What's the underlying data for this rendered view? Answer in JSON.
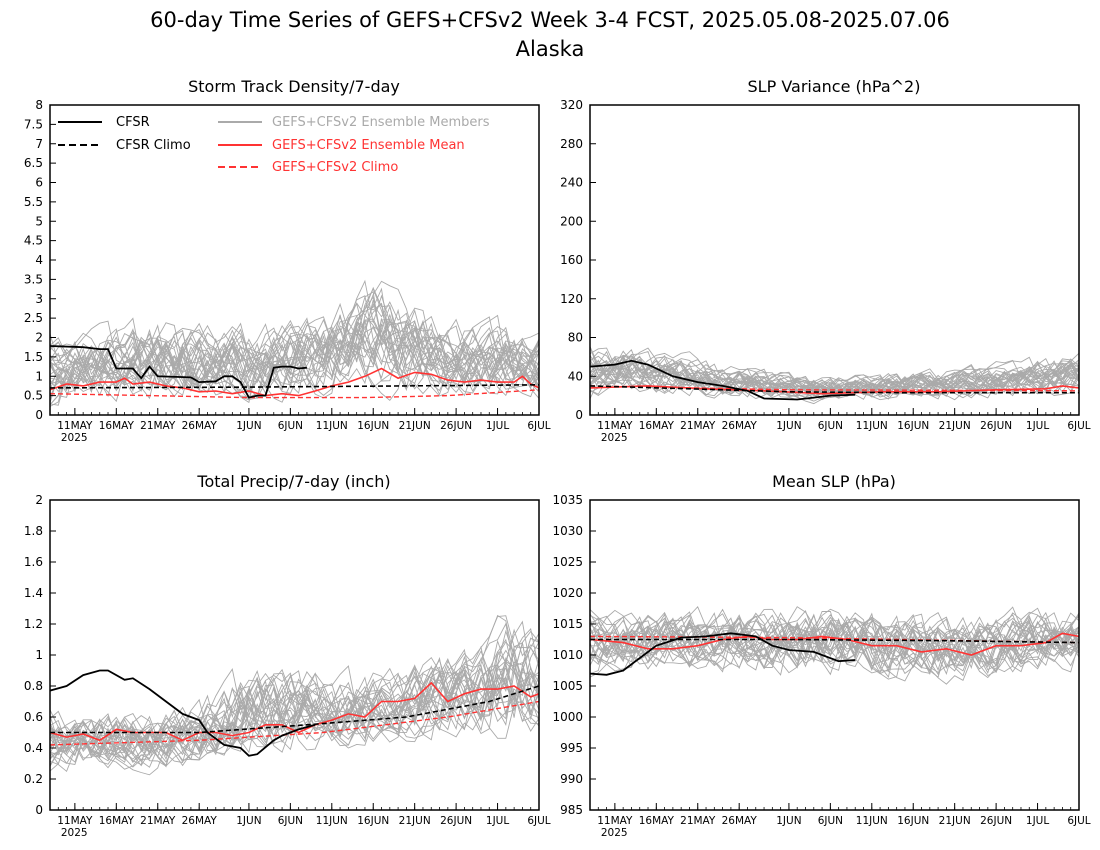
{
  "figure": {
    "title": "60-day Time Series of GEFS+CFSv2 Week 3-4 FCST, 2025.05.08-2025.07.06",
    "subtitle": "Alaska"
  },
  "legend": {
    "cfsr": "CFSR",
    "cfsr_climo": "CFSR Climo",
    "members": "GEFS+CFSv2 Ensemble Members",
    "ens_mean": "GEFS+CFSv2 Ensemble Mean",
    "gefs_climo": "GEFS+CFSv2 Climo"
  },
  "colors": {
    "cfsr": "#000000",
    "members": "#aaaaaa",
    "ens_mean": "#ff3333",
    "gefs_climo": "#ff3333"
  },
  "x_axis": {
    "date_range": [
      "2025-05-08",
      "2025-07-06"
    ],
    "tick_dates": [
      "2025-05-11",
      "2025-05-16",
      "2025-05-21",
      "2025-05-26",
      "2025-06-01",
      "2025-06-06",
      "2025-06-11",
      "2025-06-16",
      "2025-06-21",
      "2025-06-26",
      "2025-07-01",
      "2025-07-06"
    ],
    "tick_labels": [
      "11MAY",
      "16MAY",
      "21MAY",
      "26MAY",
      "1JUN",
      "6JUN",
      "11JUN",
      "16JUN",
      "21JUN",
      "26JUN",
      "1JUL",
      "6JUL"
    ],
    "year_label": "2025"
  },
  "chart_data": [
    {
      "type": "line",
      "title": "Storm Track Density/7-day",
      "ylim": [
        0,
        8
      ],
      "y_ticks": [
        0,
        0.5,
        1,
        1.5,
        2,
        2.5,
        3,
        3.5,
        4,
        4.5,
        5,
        5.5,
        6,
        6.5,
        7,
        7.5,
        8
      ],
      "y_tick_labels": [
        "0",
        "0.5",
        "1",
        "1.5",
        "2",
        "2.5",
        "3",
        "3.5",
        "4",
        "4.5",
        "5",
        "5.5",
        "6",
        "6.5",
        "7",
        "7.5",
        "8"
      ],
      "cfsr": [
        [
          "2025-05-08",
          1.78
        ],
        [
          "2025-05-12",
          1.75
        ],
        [
          "2025-05-14",
          1.7
        ],
        [
          "2025-05-15",
          1.7
        ],
        [
          "2025-05-16",
          1.2
        ],
        [
          "2025-05-18",
          1.2
        ],
        [
          "2025-05-19",
          0.95
        ],
        [
          "2025-05-20",
          1.25
        ],
        [
          "2025-05-21",
          1.0
        ],
        [
          "2025-05-25",
          0.97
        ],
        [
          "2025-05-26",
          0.85
        ],
        [
          "2025-05-28",
          0.87
        ],
        [
          "2025-05-29",
          1.0
        ],
        [
          "2025-05-30",
          1.0
        ],
        [
          "2025-05-31",
          0.85
        ],
        [
          "2025-06-01",
          0.45
        ],
        [
          "2025-06-02",
          0.5
        ],
        [
          "2025-06-03",
          0.5
        ],
        [
          "2025-06-04",
          1.22
        ],
        [
          "2025-06-05",
          1.25
        ],
        [
          "2025-06-06",
          1.25
        ],
        [
          "2025-06-07",
          1.2
        ],
        [
          "2025-06-08",
          1.22
        ]
      ],
      "cfsr_climo": [
        [
          "2025-05-08",
          0.7
        ],
        [
          "2025-06-01",
          0.72
        ],
        [
          "2025-06-20",
          0.75
        ],
        [
          "2025-07-06",
          0.78
        ]
      ],
      "ens_mean": [
        [
          "2025-05-08",
          0.65
        ],
        [
          "2025-05-10",
          0.8
        ],
        [
          "2025-05-12",
          0.75
        ],
        [
          "2025-05-14",
          0.85
        ],
        [
          "2025-05-16",
          0.85
        ],
        [
          "2025-05-17",
          0.95
        ],
        [
          "2025-05-18",
          0.8
        ],
        [
          "2025-05-20",
          0.85
        ],
        [
          "2025-05-22",
          0.75
        ],
        [
          "2025-05-24",
          0.7
        ],
        [
          "2025-05-26",
          0.6
        ],
        [
          "2025-05-28",
          0.62
        ],
        [
          "2025-05-30",
          0.55
        ],
        [
          "2025-06-01",
          0.62
        ],
        [
          "2025-06-03",
          0.5
        ],
        [
          "2025-06-05",
          0.55
        ],
        [
          "2025-06-07",
          0.5
        ],
        [
          "2025-06-09",
          0.62
        ],
        [
          "2025-06-11",
          0.75
        ],
        [
          "2025-06-13",
          0.85
        ],
        [
          "2025-06-15",
          1.0
        ],
        [
          "2025-06-17",
          1.2
        ],
        [
          "2025-06-19",
          0.95
        ],
        [
          "2025-06-21",
          1.1
        ],
        [
          "2025-06-23",
          1.05
        ],
        [
          "2025-06-25",
          0.9
        ],
        [
          "2025-06-27",
          0.85
        ],
        [
          "2025-06-29",
          0.9
        ],
        [
          "2025-07-01",
          0.85
        ],
        [
          "2025-07-03",
          0.85
        ],
        [
          "2025-07-04",
          1.0
        ],
        [
          "2025-07-05",
          0.8
        ],
        [
          "2025-07-06",
          0.7
        ]
      ],
      "gefs_climo": [
        [
          "2025-05-08",
          0.55
        ],
        [
          "2025-05-20",
          0.5
        ],
        [
          "2025-06-01",
          0.45
        ],
        [
          "2025-06-15",
          0.45
        ],
        [
          "2025-06-25",
          0.5
        ],
        [
          "2025-07-06",
          0.65
        ]
      ],
      "members": {
        "count": 30,
        "envelope": [
          [
            "2025-05-08",
            0.1,
            2.3
          ],
          [
            "2025-05-20",
            0.05,
            3.0
          ],
          [
            "2025-06-01",
            0.05,
            2.8
          ],
          [
            "2025-06-10",
            0.1,
            3.2
          ],
          [
            "2025-06-16",
            0.15,
            4.2
          ],
          [
            "2025-06-25",
            0.1,
            3.0
          ],
          [
            "2025-07-06",
            0.15,
            2.7
          ]
        ]
      }
    },
    {
      "type": "line",
      "title": "SLP Variance (hPa^2)",
      "ylim": [
        0,
        320
      ],
      "y_ticks": [
        0,
        40,
        80,
        120,
        160,
        200,
        240,
        280,
        320
      ],
      "y_tick_labels": [
        "0",
        "40",
        "80",
        "120",
        "160",
        "200",
        "240",
        "280",
        "320"
      ],
      "cfsr": [
        [
          "2025-05-08",
          50
        ],
        [
          "2025-05-11",
          52
        ],
        [
          "2025-05-13",
          56
        ],
        [
          "2025-05-15",
          52
        ],
        [
          "2025-05-18",
          40
        ],
        [
          "2025-05-21",
          34
        ],
        [
          "2025-05-24",
          30
        ],
        [
          "2025-05-27",
          25
        ],
        [
          "2025-05-29",
          17
        ],
        [
          "2025-06-02",
          16
        ],
        [
          "2025-06-04",
          18
        ],
        [
          "2025-06-06",
          20
        ],
        [
          "2025-06-09",
          21
        ]
      ],
      "cfsr_climo": [
        [
          "2025-05-08",
          30
        ],
        [
          "2025-05-20",
          27
        ],
        [
          "2025-06-01",
          24
        ],
        [
          "2025-06-15",
          23
        ],
        [
          "2025-07-06",
          23
        ]
      ],
      "ens_mean": [
        [
          "2025-05-08",
          28
        ],
        [
          "2025-05-15",
          30
        ],
        [
          "2025-05-22",
          27
        ],
        [
          "2025-05-29",
          25
        ],
        [
          "2025-06-05",
          22
        ],
        [
          "2025-06-12",
          24
        ],
        [
          "2025-06-19",
          24
        ],
        [
          "2025-06-26",
          26
        ],
        [
          "2025-07-02",
          27
        ],
        [
          "2025-07-04",
          30
        ],
        [
          "2025-07-06",
          28
        ]
      ],
      "gefs_climo": [
        [
          "2025-05-08",
          30
        ],
        [
          "2025-06-01",
          26
        ],
        [
          "2025-07-06",
          25
        ]
      ],
      "members": {
        "count": 30,
        "envelope": [
          [
            "2025-05-08",
            10,
            75
          ],
          [
            "2025-05-12",
            12,
            85
          ],
          [
            "2025-05-25",
            10,
            60
          ],
          [
            "2025-06-05",
            8,
            45
          ],
          [
            "2025-06-20",
            10,
            55
          ],
          [
            "2025-07-06",
            10,
            75
          ]
        ]
      }
    },
    {
      "type": "line",
      "title": "Total Precip/7-day (inch)",
      "ylim": [
        0,
        2
      ],
      "y_ticks": [
        0,
        0.2,
        0.4,
        0.6,
        0.8,
        1,
        1.2,
        1.4,
        1.6,
        1.8,
        2
      ],
      "y_tick_labels": [
        "0",
        "0.2",
        "0.4",
        "0.6",
        "0.8",
        "1",
        "1.2",
        "1.4",
        "1.6",
        "1.8",
        "2"
      ],
      "cfsr": [
        [
          "2025-05-08",
          0.77
        ],
        [
          "2025-05-10",
          0.8
        ],
        [
          "2025-05-12",
          0.87
        ],
        [
          "2025-05-14",
          0.9
        ],
        [
          "2025-05-15",
          0.9
        ],
        [
          "2025-05-17",
          0.84
        ],
        [
          "2025-05-18",
          0.85
        ],
        [
          "2025-05-20",
          0.78
        ],
        [
          "2025-05-22",
          0.7
        ],
        [
          "2025-05-24",
          0.62
        ],
        [
          "2025-05-26",
          0.58
        ],
        [
          "2025-05-27",
          0.5
        ],
        [
          "2025-05-29",
          0.42
        ],
        [
          "2025-05-31",
          0.4
        ],
        [
          "2025-06-01",
          0.35
        ],
        [
          "2025-06-02",
          0.36
        ],
        [
          "2025-06-04",
          0.45
        ],
        [
          "2025-06-05",
          0.48
        ],
        [
          "2025-06-07",
          0.52
        ],
        [
          "2025-06-09",
          0.55
        ]
      ],
      "cfsr_climo": [
        [
          "2025-05-08",
          0.5
        ],
        [
          "2025-05-26",
          0.5
        ],
        [
          "2025-06-08",
          0.55
        ],
        [
          "2025-06-20",
          0.6
        ],
        [
          "2025-06-30",
          0.7
        ],
        [
          "2025-07-06",
          0.8
        ]
      ],
      "ens_mean": [
        [
          "2025-05-08",
          0.5
        ],
        [
          "2025-05-10",
          0.47
        ],
        [
          "2025-05-12",
          0.49
        ],
        [
          "2025-05-14",
          0.45
        ],
        [
          "2025-05-16",
          0.52
        ],
        [
          "2025-05-18",
          0.5
        ],
        [
          "2025-05-20",
          0.5
        ],
        [
          "2025-05-22",
          0.5
        ],
        [
          "2025-05-24",
          0.45
        ],
        [
          "2025-05-26",
          0.5
        ],
        [
          "2025-05-28",
          0.5
        ],
        [
          "2025-05-30",
          0.48
        ],
        [
          "2025-06-01",
          0.5
        ],
        [
          "2025-06-03",
          0.55
        ],
        [
          "2025-06-05",
          0.55
        ],
        [
          "2025-06-07",
          0.5
        ],
        [
          "2025-06-09",
          0.55
        ],
        [
          "2025-06-11",
          0.58
        ],
        [
          "2025-06-13",
          0.62
        ],
        [
          "2025-06-15",
          0.6
        ],
        [
          "2025-06-17",
          0.7
        ],
        [
          "2025-06-19",
          0.7
        ],
        [
          "2025-06-21",
          0.72
        ],
        [
          "2025-06-23",
          0.82
        ],
        [
          "2025-06-25",
          0.7
        ],
        [
          "2025-06-27",
          0.75
        ],
        [
          "2025-06-29",
          0.78
        ],
        [
          "2025-07-01",
          0.78
        ],
        [
          "2025-07-03",
          0.8
        ],
        [
          "2025-07-05",
          0.73
        ],
        [
          "2025-07-06",
          0.75
        ]
      ],
      "gefs_climo": [
        [
          "2025-05-08",
          0.42
        ],
        [
          "2025-05-26",
          0.45
        ],
        [
          "2025-06-10",
          0.5
        ],
        [
          "2025-06-25",
          0.6
        ],
        [
          "2025-07-06",
          0.7
        ]
      ],
      "members": {
        "count": 30,
        "envelope": [
          [
            "2025-05-08",
            0.2,
            0.7
          ],
          [
            "2025-05-26",
            0.2,
            0.8
          ],
          [
            "2025-06-01",
            0.25,
            1.1
          ],
          [
            "2025-06-15",
            0.35,
            1.0
          ],
          [
            "2025-06-28",
            0.4,
            1.2
          ],
          [
            "2025-07-03",
            0.3,
            1.5
          ],
          [
            "2025-07-06",
            0.4,
            1.3
          ]
        ]
      }
    },
    {
      "type": "line",
      "title": "Mean SLP (hPa)",
      "ylim": [
        985,
        1035
      ],
      "y_ticks": [
        985,
        990,
        995,
        1000,
        1005,
        1010,
        1015,
        1020,
        1025,
        1030,
        1035
      ],
      "y_tick_labels": [
        "985",
        "990",
        "995",
        "1000",
        "1005",
        "1010",
        "1015",
        "1020",
        "1025",
        "1030",
        "1035"
      ],
      "cfsr": [
        [
          "2025-05-08",
          1007
        ],
        [
          "2025-05-10",
          1006.8
        ],
        [
          "2025-05-12",
          1007.5
        ],
        [
          "2025-05-14",
          1009.5
        ],
        [
          "2025-05-16",
          1011.5
        ],
        [
          "2025-05-19",
          1012.8
        ],
        [
          "2025-05-22",
          1013
        ],
        [
          "2025-05-25",
          1013.5
        ],
        [
          "2025-05-28",
          1013
        ],
        [
          "2025-05-30",
          1011.5
        ],
        [
          "2025-06-01",
          1010.8
        ],
        [
          "2025-06-04",
          1010.5
        ],
        [
          "2025-06-07",
          1009
        ],
        [
          "2025-06-09",
          1009.2
        ]
      ],
      "cfsr_climo": [
        [
          "2025-05-08",
          1012.5
        ],
        [
          "2025-06-01",
          1012.5
        ],
        [
          "2025-06-20",
          1012.3
        ],
        [
          "2025-07-06",
          1012
        ]
      ],
      "ens_mean": [
        [
          "2025-05-08",
          1012.5
        ],
        [
          "2025-05-12",
          1012
        ],
        [
          "2025-05-15",
          1011
        ],
        [
          "2025-05-18",
          1011
        ],
        [
          "2025-05-21",
          1011.5
        ],
        [
          "2025-05-24",
          1012.5
        ],
        [
          "2025-05-27",
          1013
        ],
        [
          "2025-05-30",
          1012.5
        ],
        [
          "2025-06-02",
          1012.5
        ],
        [
          "2025-06-05",
          1013
        ],
        [
          "2025-06-08",
          1012.5
        ],
        [
          "2025-06-11",
          1011.5
        ],
        [
          "2025-06-14",
          1011.5
        ],
        [
          "2025-06-17",
          1010.5
        ],
        [
          "2025-06-20",
          1011
        ],
        [
          "2025-06-23",
          1010
        ],
        [
          "2025-06-26",
          1011.5
        ],
        [
          "2025-06-29",
          1011.5
        ],
        [
          "2025-07-02",
          1012
        ],
        [
          "2025-07-04",
          1013.5
        ],
        [
          "2025-07-06",
          1013
        ]
      ],
      "gefs_climo": [
        [
          "2025-05-08",
          1013
        ],
        [
          "2025-06-01",
          1012.8
        ],
        [
          "2025-07-06",
          1012
        ]
      ],
      "members": {
        "count": 30,
        "envelope": [
          [
            "2025-05-08",
            1005,
            1019
          ],
          [
            "2025-05-25",
            1005,
            1020
          ],
          [
            "2025-06-05",
            1004,
            1021
          ],
          [
            "2025-06-20",
            1003,
            1019
          ],
          [
            "2025-07-06",
            1006,
            1020
          ]
        ]
      }
    }
  ]
}
